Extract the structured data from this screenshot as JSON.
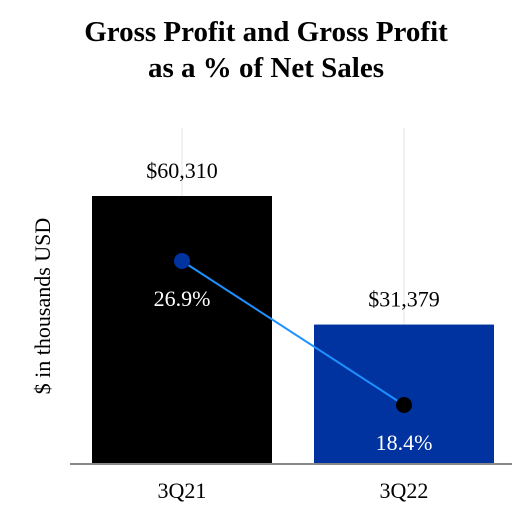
{
  "chart_data": {
    "type": "bar",
    "title_lines": [
      "Gross Profit and Gross Profit",
      "as a % of Net Sales"
    ],
    "ylabel": "$ in thousands USD",
    "categories": [
      "3Q21",
      "3Q22"
    ],
    "series": [
      {
        "type": "bar",
        "values": [
          60310,
          31379
        ],
        "value_labels": [
          "$60,310",
          "$31,379"
        ],
        "colors": [
          "#000000",
          "#0033a0"
        ]
      },
      {
        "type": "line",
        "values": [
          26.9,
          18.4
        ],
        "value_labels": [
          "26.9%",
          "18.4%"
        ],
        "marker_colors": [
          "#0033a0",
          "#000000"
        ],
        "line_color": "#1e90ff"
      }
    ],
    "ylim": [
      0,
      60310
    ],
    "grid": true,
    "legend": "none"
  }
}
